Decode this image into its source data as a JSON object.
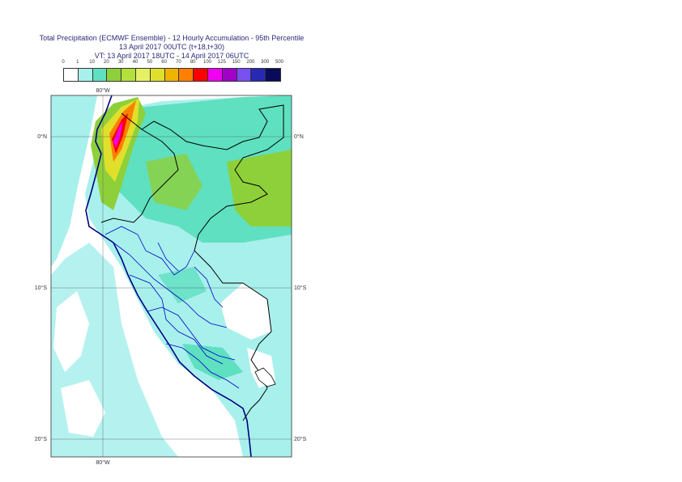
{
  "title": {
    "line1": "Total Precipitation (ECMWF Ensemble) - 12 Hourly Accumulation - 95th Percentile",
    "line2": "13 April 2017 00UTC (t+18,t+30)",
    "line3": "VT: 13 April 2017 18UTC - 14 April 2017 06UTC"
  },
  "legend": {
    "labels": [
      "0",
      "1",
      "10",
      "20",
      "30",
      "40",
      "50",
      "60",
      "70",
      "80",
      "100",
      "125",
      "150",
      "200",
      "300",
      "500"
    ],
    "colors": [
      "#ffffff",
      "#a8f0ec",
      "#5fe0c0",
      "#8ed03a",
      "#b4e03c",
      "#e6f064",
      "#e0e02c",
      "#f0b400",
      "#ff8000",
      "#ff0000",
      "#f000f0",
      "#a000c8",
      "#7850f0",
      "#2828b4",
      "#0a0a5a"
    ]
  },
  "axes": {
    "lon_top": "80°W",
    "lon_bottom": "80°W",
    "lat_left": [
      "0°N",
      "10°S",
      "20°S"
    ],
    "lat_right": [
      "0°N",
      "10°S",
      "20°S"
    ]
  },
  "colors": {
    "coast": "#000080",
    "border": "#000000",
    "light_precip": "#a8f0ec",
    "mid_precip": "#5fe0c0",
    "green_precip": "#8ed03a"
  }
}
